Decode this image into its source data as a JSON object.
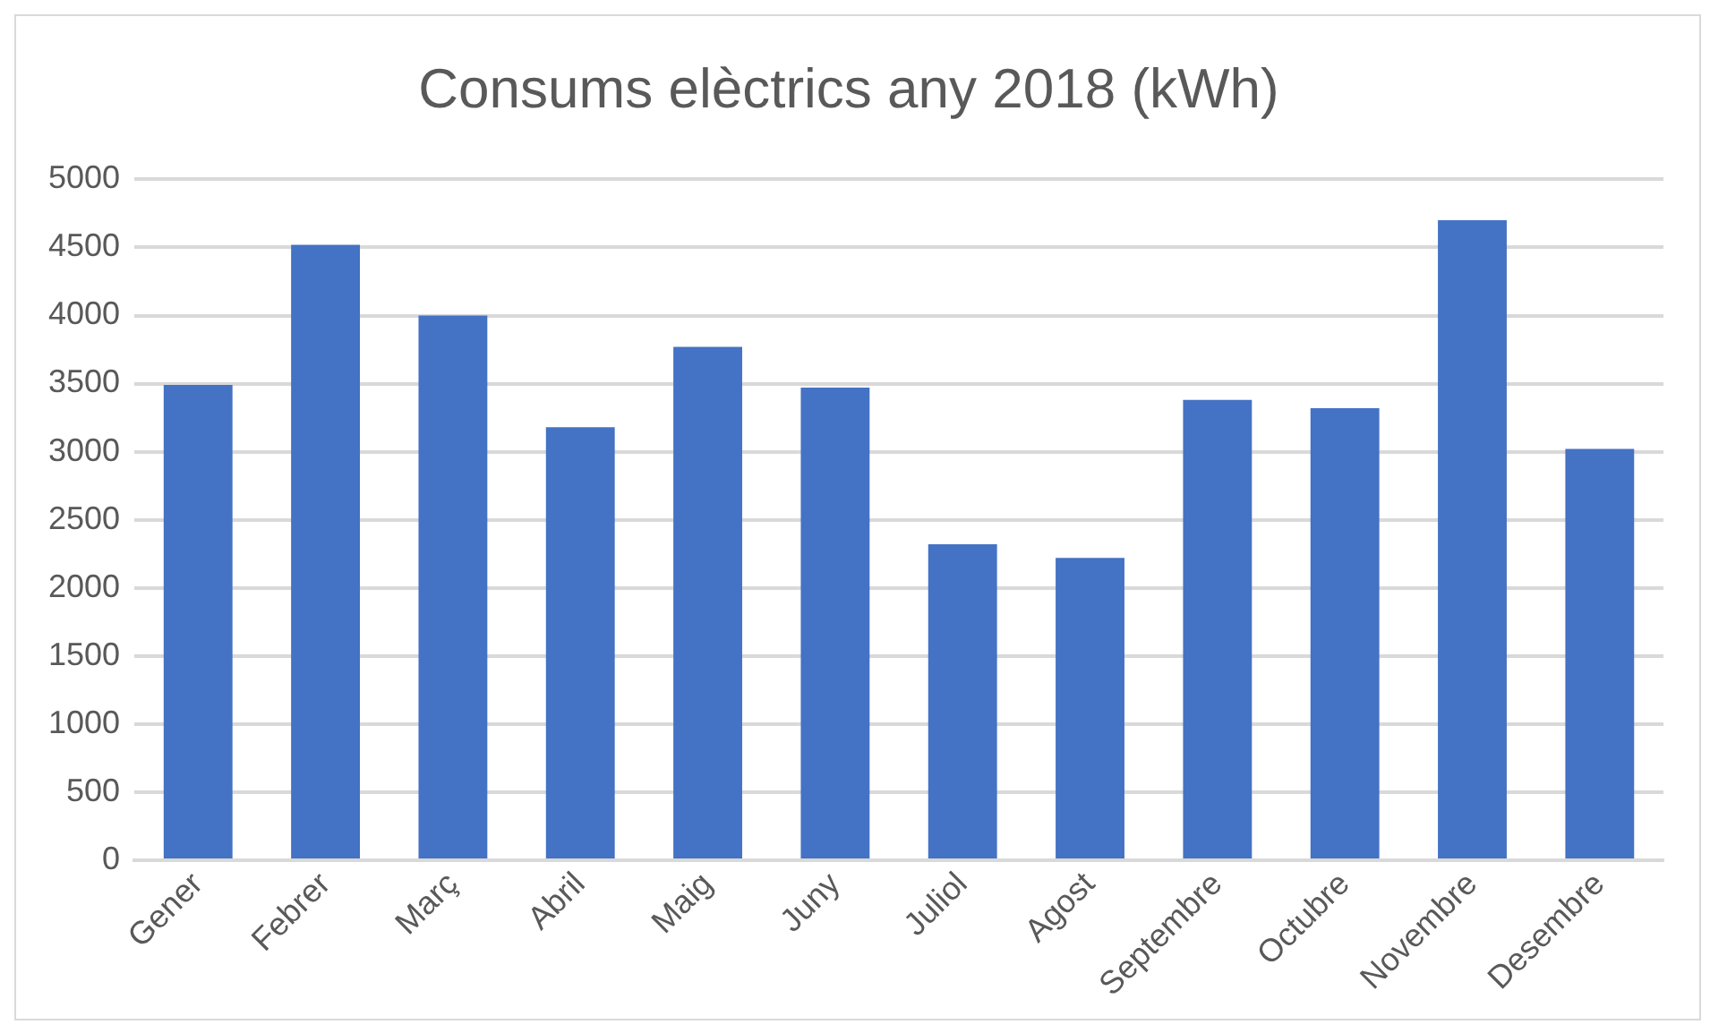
{
  "chart_data": {
    "type": "bar",
    "title": "Consums elèctrics any 2018 (kWh)",
    "categories": [
      "Gener",
      "Febrer",
      "Març",
      "Abril",
      "Maig",
      "Juny",
      "Juliol",
      "Agost",
      "Septembre",
      "Octubre",
      "Novembre",
      "Desembre"
    ],
    "values": [
      3490,
      4520,
      4000,
      3180,
      3770,
      3470,
      2320,
      2220,
      3380,
      3320,
      4700,
      3020
    ],
    "color": "#4472c4",
    "ylim": [
      0,
      5000
    ],
    "yticks": [
      0,
      500,
      1000,
      1500,
      2000,
      2500,
      3000,
      3500,
      4000,
      4500,
      5000
    ],
    "grid": "y",
    "legend": false
  }
}
